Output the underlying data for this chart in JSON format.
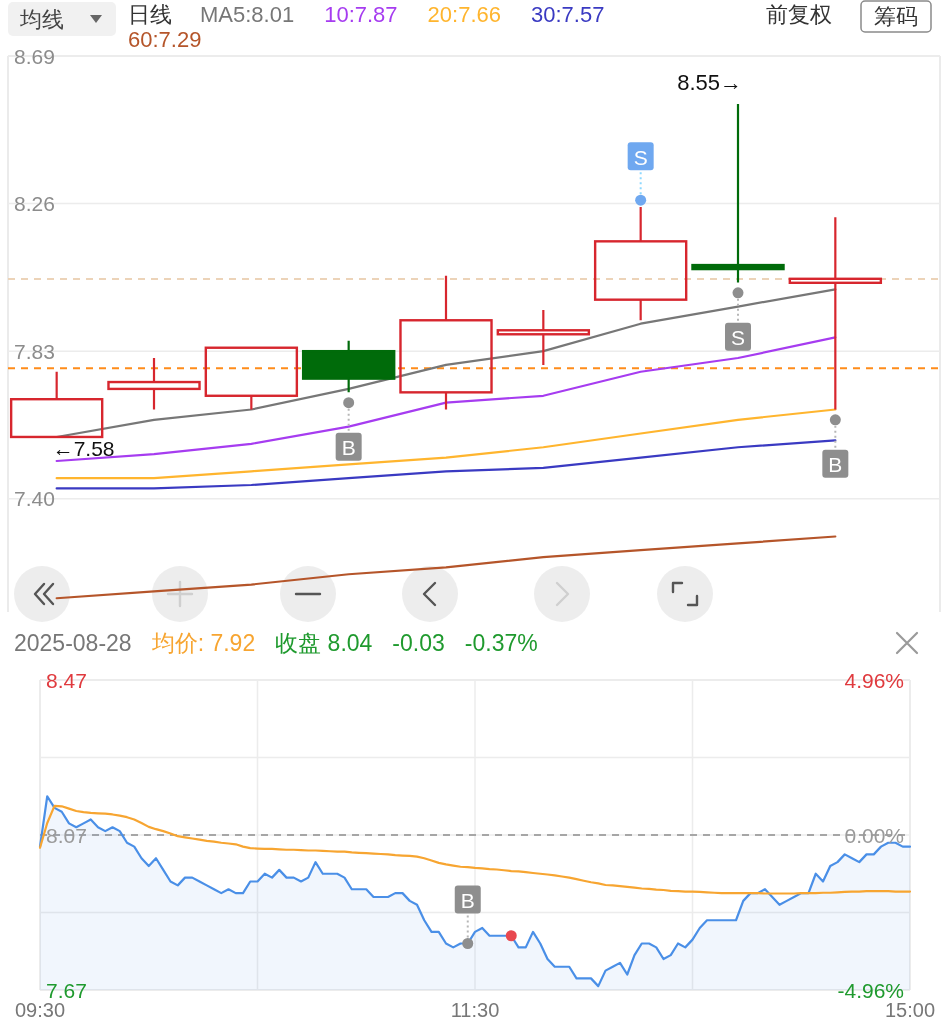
{
  "chart_data": [
    {
      "type": "candlestick",
      "title": "日线",
      "categories": [
        null,
        null,
        null,
        null,
        null,
        null,
        null,
        null,
        null
      ],
      "ohlc": [
        [
          7.58,
          7.77,
          7.58,
          7.69
        ],
        [
          7.72,
          7.81,
          7.66,
          7.74
        ],
        [
          7.7,
          7.84,
          7.66,
          7.84
        ],
        [
          7.83,
          7.86,
          7.71,
          7.75
        ],
        [
          7.71,
          8.05,
          7.66,
          7.92
        ],
        [
          7.88,
          7.95,
          7.79,
          7.89
        ],
        [
          7.98,
          8.25,
          7.92,
          8.15
        ],
        [
          8.08,
          8.55,
          8.03,
          8.07
        ],
        [
          8.03,
          8.22,
          7.66,
          8.04
        ]
      ],
      "colors": [
        "#d7262e",
        "#d7262e",
        "#d7262e",
        "#006b0a",
        "#d7262e",
        "#d7262e",
        "#d7262e",
        "#006b0a",
        "#d7262e"
      ],
      "series": [
        {
          "name": "MA5:8.01",
          "type": "line",
          "color": "#777777",
          "values": [
            7.58,
            7.63,
            7.66,
            7.72,
            7.79,
            7.83,
            7.91,
            7.96,
            8.01
          ]
        },
        {
          "name": "10:7.87",
          "type": "line",
          "color": "#a63cf0",
          "values": [
            7.51,
            7.53,
            7.56,
            7.61,
            7.68,
            7.7,
            7.77,
            7.81,
            7.87
          ]
        },
        {
          "name": "20:7.66",
          "type": "line",
          "color": "#ffb52e",
          "values": [
            7.46,
            7.46,
            7.48,
            7.5,
            7.52,
            7.55,
            7.59,
            7.63,
            7.66
          ]
        },
        {
          "name": "30:7.57",
          "type": "line",
          "color": "#3a3ac2",
          "values": [
            7.43,
            7.43,
            7.44,
            7.46,
            7.48,
            7.49,
            7.52,
            7.55,
            7.57
          ]
        },
        {
          "name": "60:7.29",
          "type": "line",
          "color": "#b5552a",
          "values": [
            7.11,
            7.13,
            7.15,
            7.18,
            7.2,
            7.23,
            7.25,
            7.27,
            7.29
          ]
        },
        {
          "name": "B",
          "type": "scatter",
          "color": "#8e8e8e",
          "values": [
            null,
            null,
            null,
            7.68,
            null,
            null,
            null,
            null,
            7.63
          ]
        },
        {
          "name": "S",
          "type": "scatter",
          "color": "#6fa8f0",
          "values": [
            null,
            null,
            null,
            null,
            null,
            null,
            8.27,
            null,
            null
          ]
        },
        {
          "name": "S",
          "type": "scatter",
          "color": "#8e8e8e",
          "values": [
            null,
            null,
            null,
            null,
            null,
            null,
            null,
            8.0,
            null
          ]
        }
      ],
      "ylim": [
        7.07,
        8.69
      ],
      "yticks": [
        8.69,
        8.26,
        7.83,
        {
          "value": 7.4,
          "label": "7.40"
        }
      ],
      "tick_labels": "y",
      "grid": "y",
      "legend": "top",
      "ref_lines": [
        {
          "axis": "y",
          "value": 7.78,
          "color": "#ff8c1a",
          "line_style": "dashed"
        },
        {
          "axis": "y",
          "value": 8.04,
          "color": "#ecd3b8",
          "line_style": "dashed"
        }
      ],
      "annotations": [
        "均线",
        "前复权",
        "筹码",
        "8.55→",
        "←7.58"
      ]
    },
    {
      "type": "line",
      "title": "2025-08-28",
      "categories": [
        "09:30",
        null,
        null,
        null,
        null,
        null,
        null,
        null,
        null,
        null,
        null,
        null,
        null,
        null,
        null,
        null,
        null,
        null,
        null,
        null,
        null,
        null,
        null,
        null,
        null,
        null,
        null,
        null,
        null,
        null,
        null,
        null,
        null,
        null,
        null,
        null,
        null,
        null,
        null,
        null,
        null,
        null,
        null,
        null,
        null,
        null,
        null,
        null,
        null,
        null,
        null,
        null,
        null,
        null,
        null,
        null,
        null,
        null,
        null,
        null,
        "11:30",
        null,
        null,
        null,
        null,
        null,
        null,
        null,
        null,
        null,
        null,
        null,
        null,
        null,
        null,
        null,
        null,
        null,
        null,
        null,
        null,
        null,
        null,
        null,
        null,
        null,
        null,
        null,
        null,
        null,
        null,
        null,
        null,
        null,
        null,
        null,
        null,
        null,
        null,
        null,
        null,
        null,
        null,
        null,
        null,
        null,
        null,
        null,
        null,
        null,
        null,
        null,
        null,
        null,
        null,
        null,
        null,
        null,
        null,
        null,
        "15:00"
      ],
      "series": [
        {
          "type": "area",
          "color": "#4a8fe7",
          "values": [
            8.04,
            8.17,
            8.14,
            8.13,
            8.1,
            8.09,
            8.1,
            8.11,
            8.09,
            8.08,
            8.09,
            8.08,
            8.05,
            8.04,
            8.01,
            7.99,
            8.01,
            7.98,
            7.95,
            7.94,
            7.96,
            7.96,
            7.95,
            7.94,
            7.93,
            7.92,
            7.93,
            7.92,
            7.92,
            7.95,
            7.95,
            7.97,
            7.96,
            7.98,
            7.96,
            7.96,
            7.95,
            7.96,
            8.0,
            7.97,
            7.97,
            7.97,
            7.96,
            7.93,
            7.93,
            7.93,
            7.91,
            7.91,
            7.91,
            7.92,
            7.92,
            7.9,
            7.89,
            7.85,
            7.82,
            7.82,
            7.79,
            7.78,
            7.79,
            7.79,
            7.82,
            7.83,
            7.81,
            7.81,
            7.81,
            7.81,
            7.78,
            7.78,
            7.82,
            7.79,
            7.75,
            7.73,
            7.73,
            7.73,
            7.7,
            7.7,
            7.7,
            7.68,
            7.72,
            7.73,
            7.74,
            7.71,
            7.76,
            7.79,
            7.79,
            7.78,
            7.75,
            7.76,
            7.79,
            7.78,
            7.8,
            7.83,
            7.85,
            7.85,
            7.85,
            7.85,
            7.85,
            7.9,
            7.92,
            7.92,
            7.93,
            7.91,
            7.89,
            7.9,
            7.91,
            7.92,
            7.92,
            7.97,
            7.95,
            7.99,
            8.0,
            8.02,
            8.01,
            8.0,
            8.02,
            8.02,
            8.04,
            8.05,
            8.05,
            8.04,
            8.04
          ]
        },
        {
          "name": "均价: 7.92",
          "type": "line",
          "color": "#f7a531",
          "values": [
            8.037,
            8.101,
            8.145,
            8.144,
            8.138,
            8.132,
            8.129,
            8.127,
            8.126,
            8.125,
            8.123,
            8.12,
            8.116,
            8.11,
            8.101,
            8.091,
            8.085,
            8.08,
            8.074,
            8.067,
            8.064,
            8.061,
            8.058,
            8.055,
            8.053,
            8.05,
            8.048,
            8.046,
            8.04,
            8.036,
            8.035,
            8.034,
            8.034,
            8.033,
            8.032,
            8.032,
            8.031,
            8.03,
            8.03,
            8.029,
            8.028,
            8.027,
            8.027,
            8.025,
            8.024,
            8.023,
            8.022,
            8.021,
            8.02,
            8.018,
            8.017,
            8.016,
            8.014,
            8.01,
            8.004,
            7.998,
            7.994,
            7.991,
            7.988,
            7.987,
            7.985,
            7.984,
            7.982,
            7.981,
            7.979,
            7.977,
            7.976,
            7.974,
            7.972,
            7.97,
            7.968,
            7.966,
            7.963,
            7.96,
            7.956,
            7.952,
            7.948,
            7.945,
            7.941,
            7.94,
            7.938,
            7.936,
            7.934,
            7.932,
            7.931,
            7.929,
            7.928,
            7.926,
            7.925,
            7.924,
            7.924,
            7.923,
            7.922,
            7.921,
            7.92,
            7.92,
            7.92,
            7.92,
            7.92,
            7.92,
            7.919,
            7.919,
            7.919,
            7.919,
            7.919,
            7.92,
            7.92,
            7.92,
            7.921,
            7.921,
            7.922,
            7.923,
            7.924,
            7.924,
            7.925,
            7.925,
            7.925,
            7.925,
            7.924,
            7.924,
            7.924
          ]
        },
        {
          "name": "B",
          "type": "scatter",
          "color": "#8e8e8e",
          "values": [
            null,
            null,
            null,
            null,
            null,
            null,
            null,
            null,
            null,
            null,
            null,
            null,
            null,
            null,
            null,
            null,
            null,
            null,
            null,
            null,
            null,
            null,
            null,
            null,
            null,
            null,
            null,
            null,
            null,
            null,
            null,
            null,
            null,
            null,
            null,
            null,
            null,
            null,
            null,
            null,
            null,
            null,
            null,
            null,
            null,
            null,
            null,
            null,
            null,
            null,
            null,
            null,
            null,
            null,
            null,
            null,
            null,
            null,
            null,
            7.79,
            null,
            null,
            null,
            null,
            null,
            null,
            null,
            null,
            null,
            null,
            null,
            null,
            null,
            null,
            null,
            null,
            null,
            null,
            null,
            null,
            null,
            null,
            null,
            null,
            null,
            null,
            null,
            null,
            null,
            null,
            null,
            null,
            null,
            null,
            null,
            null,
            null,
            null,
            null,
            null,
            null,
            null,
            null,
            null,
            null,
            null,
            null,
            null,
            null,
            null,
            null,
            null,
            null,
            null,
            null,
            null,
            null,
            null,
            null,
            null,
            null
          ]
        },
        {
          "type": "scatter",
          "color": "#e8484f",
          "values": [
            null,
            null,
            null,
            null,
            null,
            null,
            null,
            null,
            null,
            null,
            null,
            null,
            null,
            null,
            null,
            null,
            null,
            null,
            null,
            null,
            null,
            null,
            null,
            null,
            null,
            null,
            null,
            null,
            null,
            null,
            null,
            null,
            null,
            null,
            null,
            null,
            null,
            null,
            null,
            null,
            null,
            null,
            null,
            null,
            null,
            null,
            null,
            null,
            null,
            null,
            null,
            null,
            null,
            null,
            null,
            null,
            null,
            null,
            null,
            null,
            null,
            null,
            null,
            null,
            null,
            7.81,
            null,
            null,
            null,
            null,
            null,
            null,
            null,
            null,
            null,
            null,
            null,
            null,
            null,
            null,
            null,
            null,
            null,
            null,
            null,
            null,
            null,
            null,
            null,
            null,
            null,
            null,
            null,
            null,
            null,
            null,
            null,
            null,
            null,
            null,
            null,
            null,
            null,
            null,
            null,
            null,
            null,
            null,
            null,
            null,
            null,
            null,
            null,
            null,
            null,
            null,
            null,
            null,
            null,
            null,
            null
          ]
        }
      ],
      "ylim": [
        7.67,
        8.47
      ],
      "yticks": [
        8.47,
        {
          "value": 8.27,
          "label": null
        },
        8.07,
        {
          "value": 7.87,
          "label": null
        },
        7.67
      ],
      "y2lim": [
        -4.96,
        4.96
      ],
      "y2ticks": [
        {
          "value": 4.96,
          "label": "4.96%"
        },
        {
          "value": 0,
          "label": "0.00%"
        },
        {
          "value": -4.96,
          "label": "-4.96%"
        }
      ],
      "grid": true,
      "legend": "top",
      "ref_lines": [
        {
          "axis": "y",
          "value": 8.07,
          "color": "#a6a6a6",
          "line_style": "dashed"
        }
      ],
      "annotations": [
        "收盘 8.04",
        "-0.03",
        "-0.37%"
      ]
    }
  ]
}
